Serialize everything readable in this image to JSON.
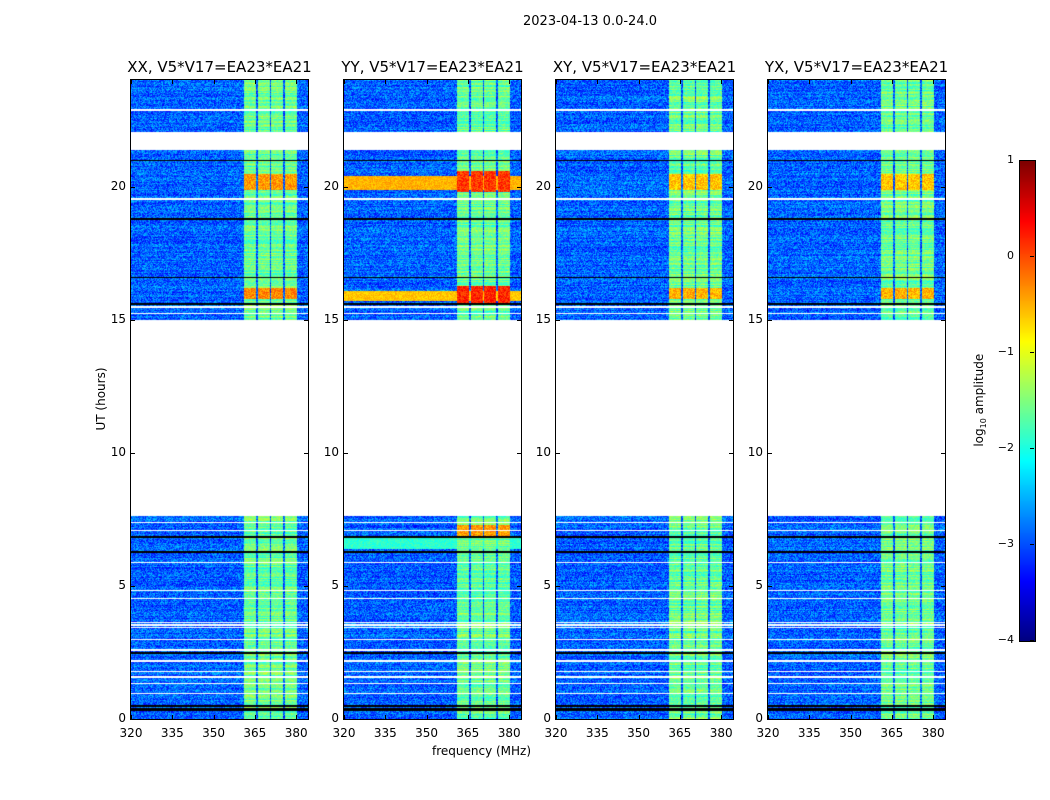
{
  "chart_data": {
    "type": "heatmap",
    "title": "2023-04-13 0.0-24.0",
    "xlabel": "frequency (MHz)",
    "ylabel": "UT (hours)",
    "xlim": [
      320,
      384.3
    ],
    "ylim": [
      0,
      24
    ],
    "xticks": [
      "320",
      "335",
      "350",
      "365",
      "380"
    ],
    "xtick_values": [
      320,
      335,
      350,
      365,
      380
    ],
    "yticks": [
      "0",
      "5",
      "10",
      "15",
      "20"
    ],
    "ytick_values": [
      0,
      5,
      10,
      15,
      20
    ],
    "colorbar": {
      "label_prefix": "log",
      "label_sub": "10",
      "label_suffix": " amplitude",
      "range": [
        -4,
        1
      ],
      "ticks": [
        "−4",
        "−3",
        "−2",
        "−1",
        "0",
        "1"
      ],
      "tick_values": [
        -4,
        -3,
        -2,
        -1,
        0,
        1
      ],
      "colormap": "jet"
    },
    "background_level": -2.9,
    "band_level": -1.6,
    "bands_mhz": [
      [
        360.7,
        365.4
      ],
      [
        365.8,
        370.2
      ],
      [
        370.5,
        375.2
      ],
      [
        375.6,
        380.0
      ]
    ],
    "no_data_hours": [
      [
        7.65,
        15.0
      ],
      [
        21.4,
        22.05
      ]
    ],
    "flagged_white_hours": [
      22.9,
      19.55,
      15.25,
      15.5,
      7.4,
      7.1,
      5.9,
      4.85,
      4.55,
      3.65,
      3.55,
      3.45,
      3.0,
      2.6,
      1.6,
      1.35,
      0.98,
      1.8,
      2.2
    ],
    "black_hours": [
      21.0,
      18.8,
      16.6,
      15.6,
      6.85,
      6.3,
      2.5,
      0.35,
      0.42,
      0.5
    ],
    "panels": [
      {
        "title": "XX, V5*V17=EA23*EA21",
        "hot_hours": [
          [
            15.8,
            16.2,
            -0.3
          ],
          [
            19.9,
            20.5,
            -0.4
          ]
        ],
        "broadband_hot": []
      },
      {
        "title": "YY, V5*V17=EA23*EA21",
        "hot_hours": [
          [
            15.6,
            16.3,
            0.2
          ],
          [
            19.8,
            20.6,
            0.1
          ],
          [
            6.8,
            7.3,
            -0.4
          ]
        ],
        "broadband_hot": [
          [
            15.7,
            16.1,
            -0.6
          ],
          [
            19.9,
            20.4,
            -0.5
          ],
          [
            6.4,
            6.8,
            -1.9
          ]
        ]
      },
      {
        "title": "XY, V5*V17=EA23*EA21",
        "hot_hours": [
          [
            15.8,
            16.2,
            -0.5
          ],
          [
            19.9,
            20.5,
            -0.6
          ]
        ],
        "broadband_hot": []
      },
      {
        "title": "YX, V5*V17=EA23*EA21",
        "hot_hours": [
          [
            15.8,
            16.2,
            -0.5
          ],
          [
            19.9,
            20.5,
            -0.6
          ]
        ],
        "broadband_hot": []
      }
    ]
  }
}
